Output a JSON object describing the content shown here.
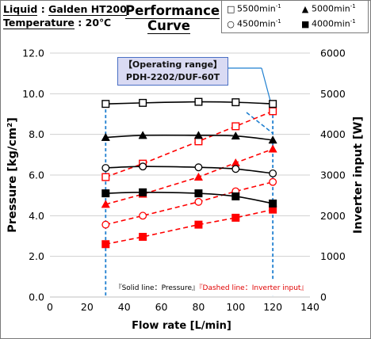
{
  "header": {
    "liquid_label": "Liquid",
    "liquid_sep": ":",
    "liquid_value": "Galden HT200",
    "temperature_label": "Temperature",
    "temperature_sep": ":",
    "temperature_value": "20℃",
    "title_line1": "Performance",
    "title_line2": "Curve"
  },
  "legend": [
    {
      "marker": "□",
      "label": "5500min",
      "sup": "-1"
    },
    {
      "marker": "▲",
      "label": "5000min",
      "sup": "-1"
    },
    {
      "marker": "○",
      "label": "4500min",
      "sup": "-1"
    },
    {
      "marker": "■",
      "label": "4000min",
      "sup": "-1"
    }
  ],
  "operating_range": {
    "line1": "【Operating range】",
    "line2": "PDH-2202/DUF-60T"
  },
  "note": {
    "solid": "『Solid line：Pressure』",
    "dashed": "『Dashed line：Inverter input』"
  },
  "colors": {
    "pressure": "#000000",
    "inverter": "#ff0000",
    "operating_range_line": "#1f7fd0"
  },
  "chart_data": {
    "type": "line",
    "xlabel": "Flow rate [L/min]",
    "ylabel": "Pressure [kg/cm²]",
    "y2label": "Inverter input [W]",
    "xlim": [
      0,
      140
    ],
    "ylim": [
      0.0,
      12.0
    ],
    "y2lim": [
      0,
      6000
    ],
    "xticks": [
      "0",
      "20",
      "40",
      "60",
      "80",
      "100",
      "120",
      "140"
    ],
    "yticks": [
      "0.0",
      "2.0",
      "4.0",
      "6.0",
      "8.0",
      "10.0",
      "12.0"
    ],
    "y2ticks": [
      "0",
      "1000",
      "2000",
      "3000",
      "4000",
      "5000",
      "6000"
    ],
    "operating_range_x": [
      30,
      120
    ],
    "grid": true,
    "pressure_series": [
      {
        "name": "5500min-1",
        "marker": "square-open",
        "x": [
          30,
          50,
          80,
          100,
          120
        ],
        "y": [
          9.5,
          9.55,
          9.6,
          9.58,
          9.5
        ]
      },
      {
        "name": "5000min-1",
        "marker": "triangle",
        "x": [
          30,
          50,
          80,
          100,
          120
        ],
        "y": [
          7.85,
          7.95,
          7.95,
          7.92,
          7.72
        ]
      },
      {
        "name": "4500min-1",
        "marker": "circle-open",
        "x": [
          30,
          50,
          80,
          100,
          120
        ],
        "y": [
          6.35,
          6.42,
          6.38,
          6.3,
          6.08
        ]
      },
      {
        "name": "4000min-1",
        "marker": "square",
        "x": [
          30,
          50,
          80,
          100,
          120
        ],
        "y": [
          5.1,
          5.15,
          5.1,
          4.95,
          4.6
        ]
      }
    ],
    "inverter_series": [
      {
        "name": "5500min-1",
        "marker": "square-open",
        "x": [
          30,
          50,
          80,
          100,
          120
        ],
        "y": [
          2950,
          3280,
          3830,
          4200,
          4570
        ]
      },
      {
        "name": "5000min-1",
        "marker": "triangle",
        "x": [
          30,
          50,
          80,
          100,
          120
        ],
        "y": [
          2280,
          2530,
          2950,
          3300,
          3640
        ]
      },
      {
        "name": "4500min-1",
        "marker": "circle-open",
        "x": [
          30,
          50,
          80,
          100,
          120
        ],
        "y": [
          1780,
          2000,
          2340,
          2600,
          2830
        ]
      },
      {
        "name": "4000min-1",
        "marker": "square",
        "x": [
          30,
          50,
          80,
          100,
          120
        ],
        "y": [
          1300,
          1480,
          1780,
          1950,
          2150
        ]
      }
    ]
  }
}
